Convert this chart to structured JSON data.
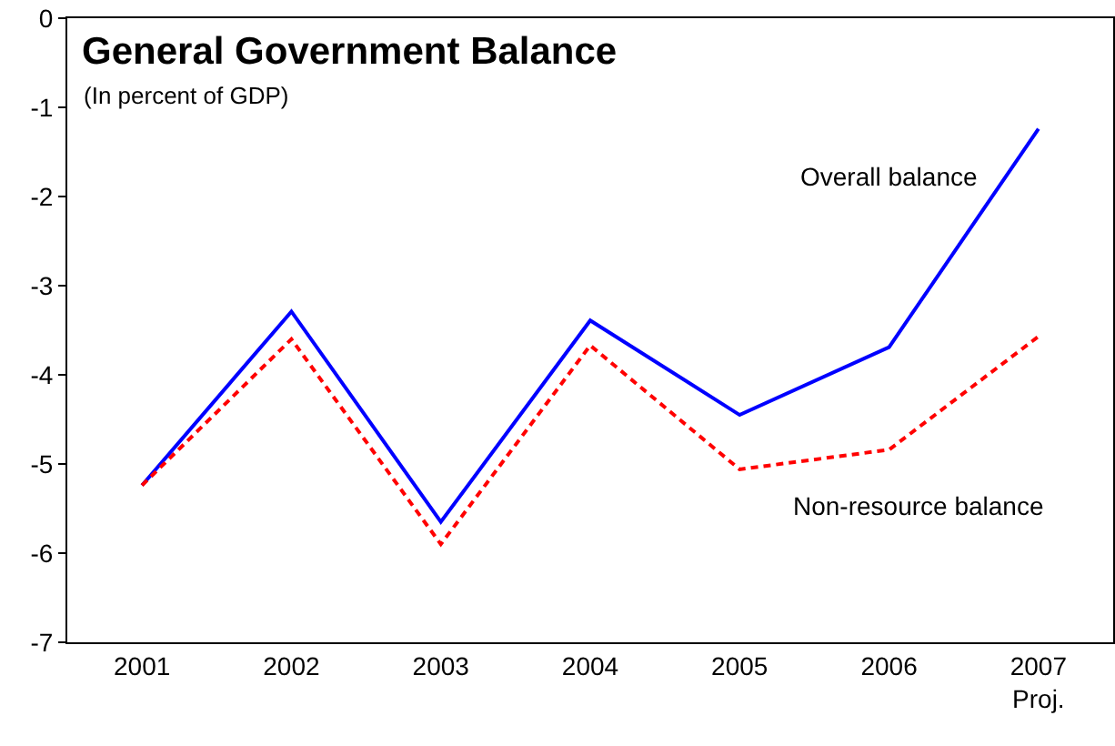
{
  "chart_data": {
    "type": "line",
    "title": "General Government Balance",
    "subtitle": "(In percent of GDP)",
    "categories": [
      "2001",
      "2002",
      "2003",
      "2004",
      "2005",
      "2006",
      "2007\nProj."
    ],
    "series": [
      {
        "name": "Overall balance",
        "color": "#0000ff",
        "line_style": "solid",
        "values": [
          -5.24,
          -3.29,
          -5.65,
          -3.39,
          -4.45,
          -3.69,
          -1.24
        ]
      },
      {
        "name": "Non-resource balance",
        "color": "#ff0000",
        "line_style": "dashed",
        "values": [
          -5.24,
          -3.6,
          -5.9,
          -3.67,
          -5.06,
          -4.84,
          -3.57
        ]
      }
    ],
    "ylim": [
      -7,
      0
    ],
    "yticks": [
      -7,
      -6,
      -5,
      -4,
      -3,
      -2,
      -1,
      0
    ],
    "grid": false,
    "legend": false
  }
}
